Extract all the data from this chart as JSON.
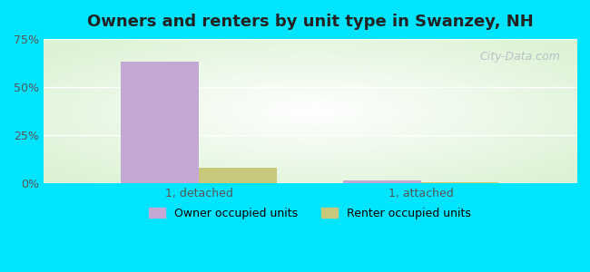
{
  "title": "Owners and renters by unit type in Swanzey, NH",
  "categories": [
    "1, detached",
    "1, attached"
  ],
  "owner_values": [
    63.0,
    1.5
  ],
  "renter_values": [
    8.0,
    0.5
  ],
  "owner_color": "#c4a8d4",
  "renter_color": "#c8c87a",
  "ylim": [
    0,
    75
  ],
  "yticks": [
    0,
    25,
    50,
    75
  ],
  "yticklabels": [
    "0%",
    "25%",
    "50%",
    "75%"
  ],
  "bar_width": 0.35,
  "background_outer": "#00e5ff",
  "watermark": "City-Data.com",
  "legend_labels": [
    "Owner occupied units",
    "Renter occupied units"
  ]
}
